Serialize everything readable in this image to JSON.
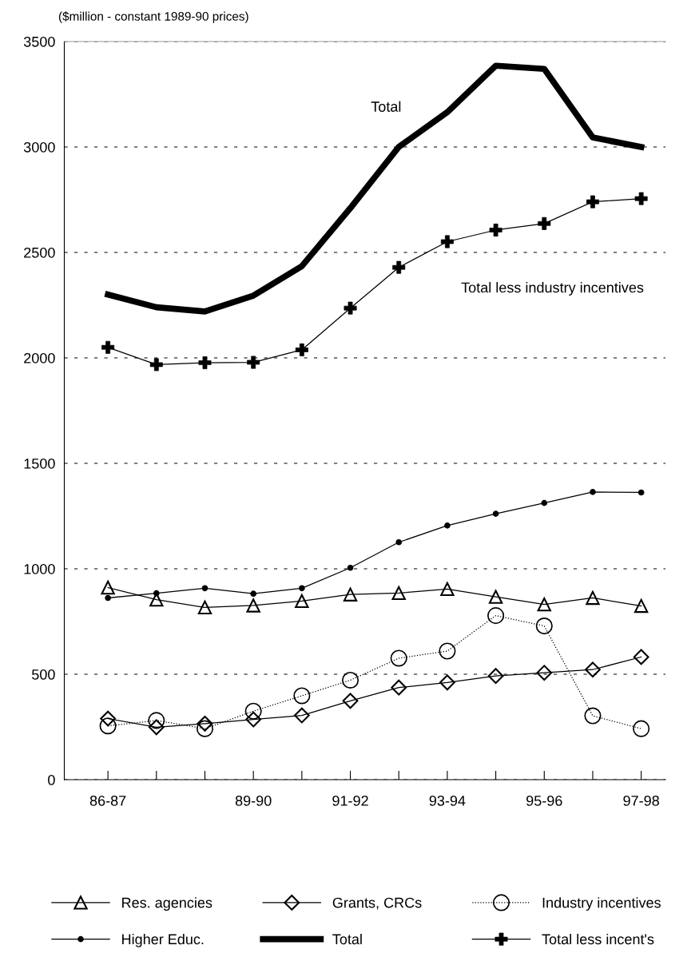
{
  "chart_data": {
    "type": "line",
    "ylabel": "($million - constant 1989-90 prices)",
    "categories": [
      "86-87",
      null,
      null,
      "89-90",
      null,
      "91-92",
      null,
      "93-94",
      null,
      "95-96",
      null,
      "97-98"
    ],
    "ylim": [
      0,
      3500
    ],
    "yticks": [
      0,
      500,
      1000,
      1500,
      2000,
      2500,
      3000,
      3500
    ],
    "grid": "y",
    "legend": "bottom",
    "annotations": [
      "Total",
      "Total less industry incentives"
    ],
    "series": [
      {
        "name": "Res. agencies",
        "color": "#000000",
        "marker": "triangle",
        "line_style": "solid",
        "values": [
          911,
          854,
          817,
          826,
          847,
          878,
          885,
          904,
          867,
          831,
          862,
          824
        ]
      },
      {
        "name": "Higher Educ.",
        "color": "#000000",
        "marker": "circle",
        "line_style": "solid",
        "values": [
          862,
          884,
          908,
          882,
          908,
          1005,
          1126,
          1205,
          1261,
          1312,
          1364,
          1362
        ]
      },
      {
        "name": "Grants, CRCs",
        "color": "#000000",
        "marker": "diamond",
        "line_style": "solid",
        "values": [
          290,
          249,
          266,
          286,
          305,
          374,
          437,
          461,
          492,
          507,
          522,
          582
        ]
      },
      {
        "name": "Total",
        "color": "#000000",
        "marker": "none",
        "line_style": "solid",
        "values": [
          2300,
          2240,
          2220,
          2295,
          2435,
          2710,
          3000,
          3165,
          3385,
          3370,
          3045,
          3000
        ]
      },
      {
        "name": "Industry incentives",
        "color": "#000000",
        "marker": "circle",
        "line_style": "dotted",
        "values": [
          255,
          281,
          242,
          325,
          398,
          472,
          576,
          610,
          778,
          729,
          303,
          242
        ]
      },
      {
        "name": "Total less incent's",
        "color": "#000000",
        "marker": "cross",
        "line_style": "solid",
        "values": [
          2050,
          1968,
          1977,
          1979,
          2038,
          2236,
          2429,
          2551,
          2606,
          2637,
          2740,
          2755
        ]
      }
    ]
  }
}
